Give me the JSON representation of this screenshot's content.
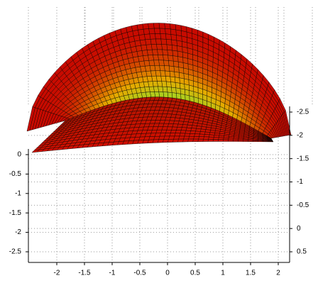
{
  "chart_data": {
    "type": "surface3d",
    "xticks": [
      -2,
      -1.5,
      -1,
      -0.5,
      0,
      0.5,
      1,
      1.5,
      2
    ],
    "zticks": [
      0,
      -0.5,
      -1,
      -1.5,
      -2,
      -2.5
    ],
    "yticks": [
      -2.5,
      -2,
      -1.5,
      -1,
      -0.5,
      0,
      0.5
    ],
    "grid": true
  }
}
